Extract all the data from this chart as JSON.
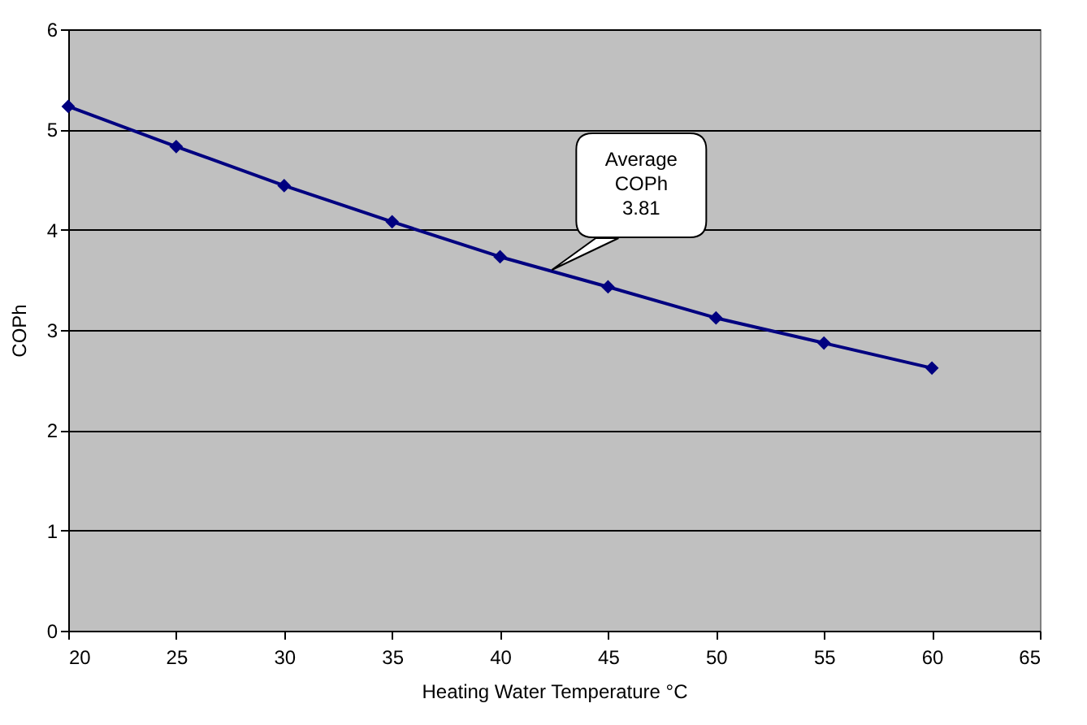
{
  "chart_data": {
    "type": "line",
    "xlabel": "Heating Water Temperature °C",
    "ylabel": "COPh",
    "x": [
      20,
      25,
      30,
      35,
      40,
      45,
      50,
      55,
      60
    ],
    "series": [
      {
        "color": "#000080",
        "values": [
          5.23,
          4.83,
          4.44,
          4.08,
          3.73,
          3.43,
          3.12,
          2.87,
          2.62
        ]
      }
    ],
    "xlim": [
      20,
      65
    ],
    "xticks": [
      20,
      25,
      30,
      35,
      40,
      45,
      50,
      55,
      60,
      65
    ],
    "ylim": [
      0,
      6
    ],
    "yticks": [
      0,
      1,
      2,
      3,
      4,
      5,
      6
    ],
    "grid": "y",
    "marker": "diamond",
    "line_style": "solid",
    "annotations": [
      {
        "text": "Average\nCOPh\n3.81",
        "x": 42.4,
        "y": 3.6
      }
    ]
  }
}
